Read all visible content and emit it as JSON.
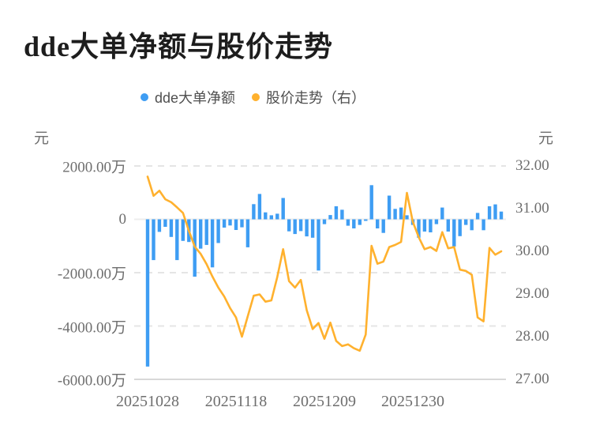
{
  "header": {
    "title": "dde大单净额与股价走势"
  },
  "legend": {
    "items": [
      {
        "label": "dde大单净额",
        "color": "#3e9df3"
      },
      {
        "label": "股价走势（右）",
        "color": "#ffb12e"
      }
    ]
  },
  "axes": {
    "left": {
      "unit": "元",
      "tick_labels": [
        "2000.00万",
        "0",
        "-2000.00万",
        "-4000.00万",
        "-6000.00万"
      ]
    },
    "right": {
      "unit": "元",
      "tick_labels": [
        "32.00",
        "31.00",
        "30.00",
        "29.00",
        "28.00",
        "27.00"
      ]
    },
    "x": {
      "tick_labels": [
        "20251028",
        "20251118",
        "20251209",
        "20251230"
      ]
    }
  },
  "chart_data": {
    "type": "combo",
    "title": "dde大单净额与股价走势",
    "x_points": 61,
    "x_labeled_ticks": [
      "20251028",
      "20251118",
      "20251209",
      "20251230"
    ],
    "x_label_indices": [
      0,
      15,
      30,
      45
    ],
    "left_axis": {
      "label": "元",
      "unit": "万",
      "min_wan": -6000,
      "max_wan": 2000,
      "gridlines_wan": [
        2000,
        0,
        -2000,
        -4000,
        -6000
      ]
    },
    "right_axis": {
      "label": "元",
      "min": 27,
      "max": 32,
      "ticks": [
        32,
        31,
        30,
        29,
        28,
        27
      ]
    },
    "grid": "horizontal-dashed",
    "legend_position": "top-center",
    "series": [
      {
        "name": "dde大单净额",
        "type": "bar",
        "axis": "left",
        "unit": "万元",
        "color": "#3e9df3",
        "values": [
          -5520,
          -1530,
          -470,
          -280,
          -660,
          -1530,
          -810,
          -850,
          -2150,
          -1100,
          -960,
          -1800,
          -890,
          -310,
          -230,
          -400,
          -300,
          -1050,
          570,
          950,
          260,
          150,
          210,
          800,
          -450,
          -550,
          -440,
          -640,
          -690,
          -1920,
          -180,
          160,
          490,
          360,
          -240,
          -340,
          -210,
          -60,
          1280,
          -340,
          -510,
          890,
          390,
          440,
          150,
          -210,
          -690,
          -460,
          -490,
          -180,
          440,
          -460,
          -1020,
          -630,
          -210,
          -410,
          240,
          -410,
          490,
          560,
          290
        ]
      },
      {
        "name": "股价走势（右）",
        "type": "line",
        "axis": "right",
        "unit": "元",
        "color": "#ffb12e",
        "values": [
          31.75,
          31.3,
          31.42,
          31.22,
          31.15,
          31.03,
          30.9,
          30.48,
          30.11,
          29.94,
          29.7,
          29.41,
          29.15,
          28.94,
          28.67,
          28.45,
          28.0,
          28.48,
          28.96,
          28.99,
          28.82,
          28.85,
          29.4,
          30.05,
          29.3,
          29.15,
          29.33,
          28.62,
          28.18,
          28.32,
          27.95,
          28.33,
          27.9,
          27.78,
          27.82,
          27.73,
          27.67,
          28.05,
          30.13,
          29.71,
          29.76,
          30.1,
          30.15,
          30.22,
          31.37,
          30.69,
          30.33,
          30.05,
          30.1,
          30.01,
          30.45,
          30.07,
          30.1,
          29.57,
          29.54,
          29.45,
          28.45,
          28.36,
          30.08,
          29.92,
          30.0
        ]
      }
    ],
    "colors": {
      "bar": "#3e9df3",
      "line": "#ffb12e",
      "grid": "#e5e5e5",
      "axis_line": "#d8d8d8",
      "tick_text": "#6e6e6e"
    }
  }
}
